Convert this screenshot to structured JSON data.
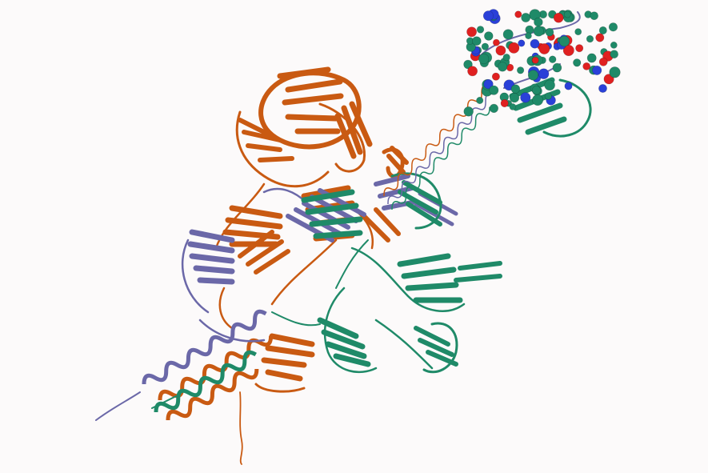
{
  "viewer": {
    "background": "#fcfafa"
  },
  "chains": [
    {
      "name": "chain-a",
      "color": "#c95a12"
    },
    {
      "name": "chain-b",
      "color": "#6b68a8"
    },
    {
      "name": "chain-c",
      "color": "#1f8a68"
    }
  ],
  "ligand": {
    "atom_colors": {
      "carbon": "#1f8a68",
      "oxygen": "#e02020",
      "nitrogen": "#2a40d8"
    }
  }
}
